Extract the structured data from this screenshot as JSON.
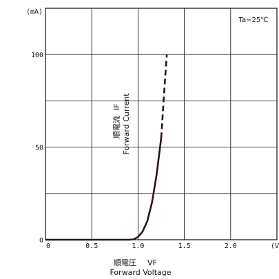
{
  "chart_data": {
    "type": "line",
    "annotation": "Ta=25℃",
    "y_unit": "(mA)",
    "x_unit": "(V",
    "xlabel": {
      "jp": "順電圧",
      "sym": "VF",
      "en": "Forward Voltage"
    },
    "ylabel": {
      "jp": "順電流",
      "sym": "IF",
      "en": "Forward Current"
    },
    "xlim": [
      0,
      2.5
    ],
    "ylim": [
      0,
      125
    ],
    "x_ticks": [
      {
        "v": 0,
        "label": "0"
      },
      {
        "v": 0.5,
        "label": "0.5"
      },
      {
        "v": 1.0,
        "label": "1.0"
      },
      {
        "v": 1.5,
        "label": "1.5"
      },
      {
        "v": 2.0,
        "label": "2.0"
      }
    ],
    "y_ticks": [
      {
        "v": 0,
        "label": "0"
      },
      {
        "v": 50,
        "label": "50"
      },
      {
        "v": 100,
        "label": "100"
      }
    ],
    "x_grid": [
      0.5,
      1.0,
      1.5,
      2.0
    ],
    "y_grid": [
      25,
      50,
      75,
      100
    ],
    "series": [
      {
        "style": "solid",
        "x": [
          0,
          0.5,
          0.9,
          0.95,
          1.0,
          1.05,
          1.1,
          1.15,
          1.2,
          1.25
        ],
        "y": [
          0,
          0,
          0,
          0.2,
          1.5,
          4.5,
          10,
          20,
          35,
          55
        ]
      },
      {
        "style": "dashed",
        "x": [
          1.25,
          1.28,
          1.31
        ],
        "y": [
          55,
          78,
          100
        ]
      }
    ]
  }
}
